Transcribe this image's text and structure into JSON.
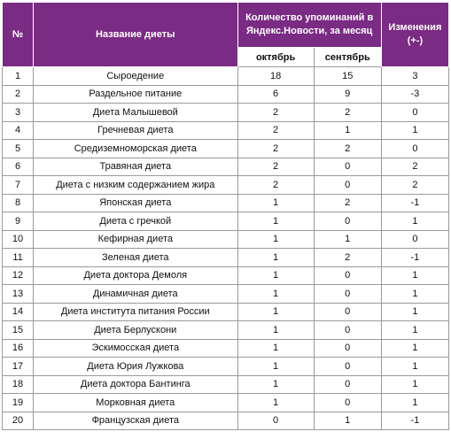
{
  "header": {
    "num": "№",
    "name": "Название диеты",
    "mentions": "Количество упоминаний в Яндекс.Новости, за месяц",
    "changes": "Изменения (+-)",
    "october": "октябрь",
    "september": "сентябрь"
  },
  "rows": [
    {
      "n": "1",
      "name": "Сыроедение",
      "oct": "18",
      "sep": "15",
      "chg": "3"
    },
    {
      "n": "2",
      "name": "Раздельное питание",
      "oct": "6",
      "sep": "9",
      "chg": "-3"
    },
    {
      "n": "3",
      "name": "Диета Малышевой",
      "oct": "2",
      "sep": "2",
      "chg": "0"
    },
    {
      "n": "4",
      "name": "Гречневая диета",
      "oct": "2",
      "sep": "1",
      "chg": "1"
    },
    {
      "n": "5",
      "name": "Средиземноморская диета",
      "oct": "2",
      "sep": "2",
      "chg": "0"
    },
    {
      "n": "6",
      "name": "Травяная диета",
      "oct": "2",
      "sep": "0",
      "chg": "2"
    },
    {
      "n": "7",
      "name": "Диета с низким содержанием жира",
      "oct": "2",
      "sep": "0",
      "chg": "2"
    },
    {
      "n": "8",
      "name": "Японская диета",
      "oct": "1",
      "sep": "2",
      "chg": "-1"
    },
    {
      "n": "9",
      "name": "Диета с гречкой",
      "oct": "1",
      "sep": "0",
      "chg": "1"
    },
    {
      "n": "10",
      "name": "Кефирная диета",
      "oct": "1",
      "sep": "1",
      "chg": "0"
    },
    {
      "n": "11",
      "name": "Зеленая диета",
      "oct": "1",
      "sep": "2",
      "chg": "-1"
    },
    {
      "n": "12",
      "name": "Диета доктора Демоля",
      "oct": "1",
      "sep": "0",
      "chg": "1"
    },
    {
      "n": "13",
      "name": "Динамичная диета",
      "oct": "1",
      "sep": "0",
      "chg": "1"
    },
    {
      "n": "14",
      "name": "Диета института питания России",
      "oct": "1",
      "sep": "0",
      "chg": "1"
    },
    {
      "n": "15",
      "name": "Диета Берлускони",
      "oct": "1",
      "sep": "0",
      "chg": "1"
    },
    {
      "n": "16",
      "name": "Эскимосская диета",
      "oct": "1",
      "sep": "0",
      "chg": "1"
    },
    {
      "n": "17",
      "name": "Диета Юрия Лужкова",
      "oct": "1",
      "sep": "0",
      "chg": "1"
    },
    {
      "n": "18",
      "name": "Диета доктора Бантинга",
      "oct": "1",
      "sep": "0",
      "chg": "1"
    },
    {
      "n": "19",
      "name": "Морковная диета",
      "oct": "1",
      "sep": "0",
      "chg": "1"
    },
    {
      "n": "20",
      "name": "Французская диета",
      "oct": "0",
      "sep": "1",
      "chg": "-1"
    }
  ],
  "colors": {
    "header_bg": "#7a2b83",
    "header_text": "#ffffff",
    "border": "#9a9a9a"
  }
}
